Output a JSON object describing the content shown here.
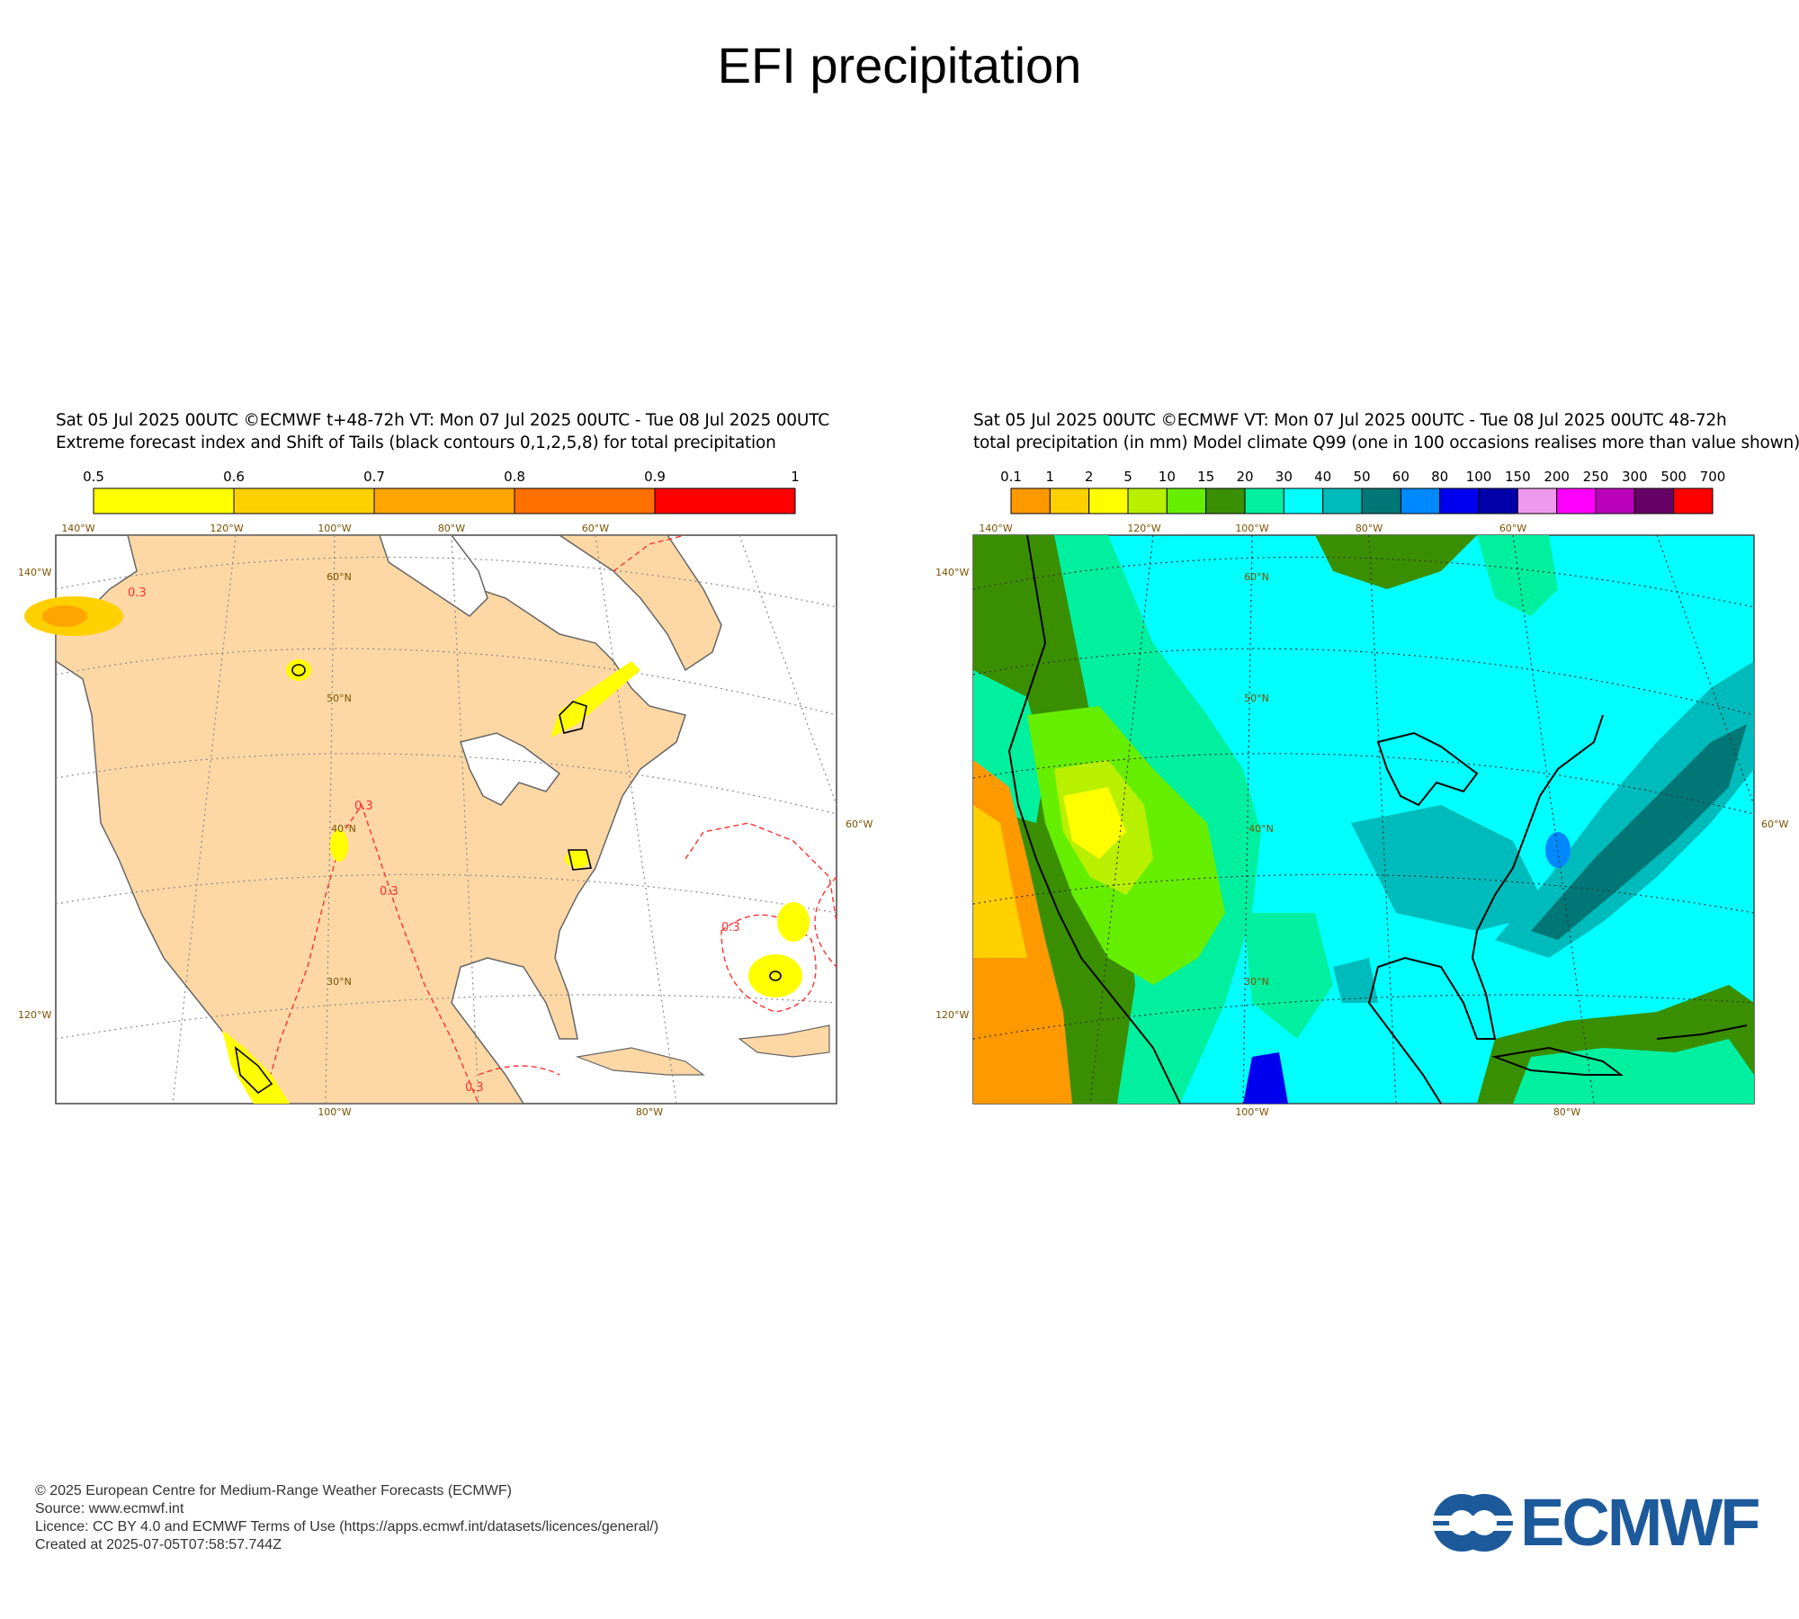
{
  "title": "EFI precipitation",
  "left_panel": {
    "header_line1": "Sat 05 Jul 2025 00UTC ©ECMWF t+48-72h  VT: Mon 07 Jul 2025 00UTC - Tue 08 Jul 2025 00UTC",
    "header_line2": "Extreme forecast index and Shift of Tails (black contours 0,1,2,5,8) for total precipitation",
    "legend_labels": [
      "0.5",
      "0.6",
      "0.7",
      "0.8",
      "0.9",
      "1"
    ],
    "legend_colors": [
      "#ffff00",
      "#ffd000",
      "#ffa500",
      "#ff7000",
      "#ff0000"
    ],
    "land_color": "#fdd8a5",
    "contour_label": "0.3",
    "lon_top": [
      "140°W",
      "120°W",
      "100°W",
      "80°W",
      "60°W"
    ],
    "lon_bottom": [
      "100°W",
      "80°W"
    ],
    "lat_left": [
      "140°W",
      "120°W"
    ],
    "lat_right": [
      "60°W"
    ],
    "lat_inner": [
      "60°N",
      "50°N",
      "40°N",
      "30°N"
    ]
  },
  "right_panel": {
    "header_line1": "Sat 05 Jul 2025 00UTC ©ECMWF VT: Mon 07 Jul 2025 00UTC - Tue 08 Jul 2025 00UTC   48-72h",
    "header_line2": "total precipitation (in mm)  Model climate Q99 (one in 100 occasions realises more than value shown)",
    "legend_labels": [
      "0.1",
      "1",
      "2",
      "5",
      "10",
      "15",
      "20",
      "30",
      "40",
      "50",
      "60",
      "80",
      "100",
      "150",
      "200",
      "250",
      "300",
      "500",
      "700"
    ],
    "legend_colors": [
      "#ff9900",
      "#ffd000",
      "#ffff00",
      "#b8f000",
      "#66ee00",
      "#3a8f00",
      "#00f0a0",
      "#00ffff",
      "#00bbbb",
      "#007777",
      "#0088ff",
      "#0000ee",
      "#0000aa",
      "#ee99ee",
      "#ff00ff",
      "#bb00bb",
      "#660066",
      "#ff0000"
    ],
    "lon_top": [
      "140°W",
      "120°W",
      "100°W",
      "80°W",
      "60°W"
    ],
    "lon_bottom": [
      "100°W",
      "80°W"
    ],
    "lat_left": [
      "140°W",
      "120°W"
    ],
    "lat_right": [
      "60°W"
    ],
    "lat_inner": [
      "60°N",
      "50°N",
      "40°N",
      "30°N"
    ]
  },
  "footer": {
    "line1": "© 2025 European Centre for Medium-Range Weather Forecasts (ECMWF)",
    "line2": "Source: www.ecmwf.int",
    "line3": "Licence: CC BY 4.0 and ECMWF Terms of Use (https://apps.ecmwf.int/datasets/licences/general/)",
    "line4": "Created at 2025-07-05T07:58:57.744Z"
  },
  "logo": {
    "text": "ECMWF",
    "color": "#1d5a9b"
  }
}
